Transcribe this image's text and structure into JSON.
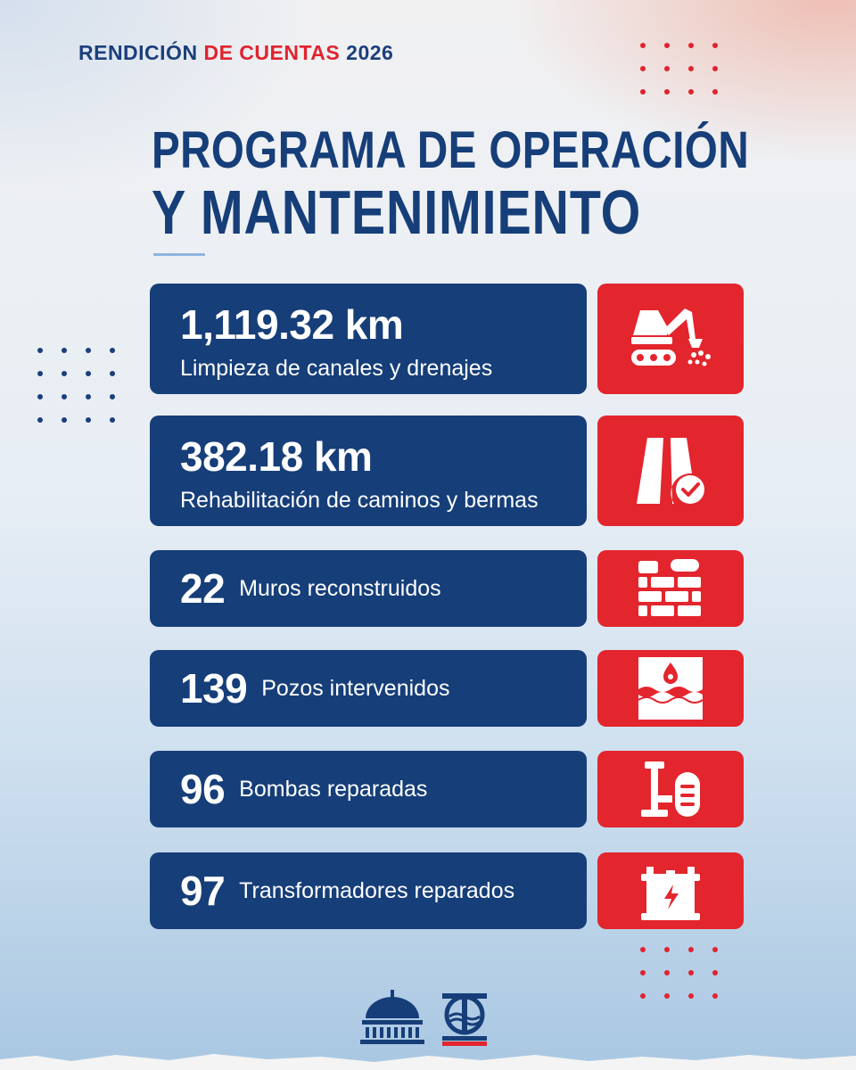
{
  "header": {
    "part1": "RENDICIÓN",
    "part2": "DE CUENTAS",
    "part3": "2026"
  },
  "title": {
    "line1": "PROGRAMA DE OPERACIÓN",
    "line2": "Y MANTENIMIENTO"
  },
  "items": [
    {
      "value": "1,119.32 km",
      "label": "Limpieza de canales y drenajes",
      "icon": "excavator-icon"
    },
    {
      "value": "382.18 km",
      "label": "Rehabilitación de caminos y bermas",
      "icon": "road-check-icon"
    },
    {
      "value": "22",
      "label": "Muros reconstruidos",
      "icon": "brick-wall-icon"
    },
    {
      "value": "139",
      "label": "Pozos intervenidos",
      "icon": "well-water-icon"
    },
    {
      "value": "96",
      "label": "Bombas reparadas",
      "icon": "pump-icon"
    },
    {
      "value": "97",
      "label": "Transformadores reparados",
      "icon": "transformer-icon"
    }
  ],
  "colors": {
    "navy": "#163e79",
    "red": "#e3252d",
    "accent_blue": "#8fb5df"
  },
  "footer": {
    "logos": [
      "government-dome-logo",
      "indrhi-logo"
    ]
  }
}
